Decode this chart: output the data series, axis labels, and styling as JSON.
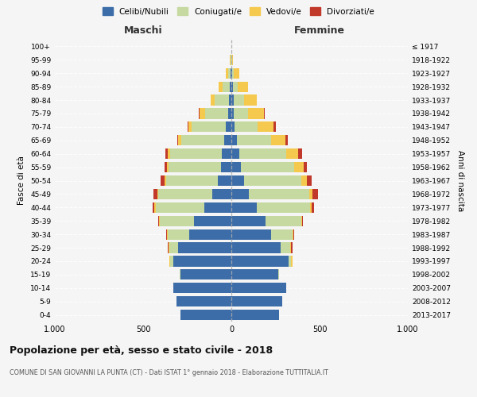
{
  "age_groups": [
    "0-4",
    "5-9",
    "10-14",
    "15-19",
    "20-24",
    "25-29",
    "30-34",
    "35-39",
    "40-44",
    "45-49",
    "50-54",
    "55-59",
    "60-64",
    "65-69",
    "70-74",
    "75-79",
    "80-84",
    "85-89",
    "90-94",
    "95-99",
    "100+"
  ],
  "birth_years": [
    "2013-2017",
    "2008-2012",
    "2003-2007",
    "1998-2002",
    "1993-1997",
    "1988-1992",
    "1983-1987",
    "1978-1982",
    "1973-1977",
    "1968-1972",
    "1963-1967",
    "1958-1962",
    "1953-1957",
    "1948-1952",
    "1943-1947",
    "1938-1942",
    "1933-1937",
    "1928-1932",
    "1923-1927",
    "1918-1922",
    "≤ 1917"
  ],
  "males": {
    "celibi": [
      290,
      310,
      330,
      290,
      330,
      300,
      240,
      210,
      155,
      110,
      75,
      60,
      55,
      40,
      30,
      20,
      15,
      8,
      5,
      2,
      0
    ],
    "coniugati": [
      0,
      0,
      0,
      5,
      15,
      50,
      120,
      195,
      275,
      305,
      295,
      295,
      290,
      245,
      195,
      130,
      80,
      40,
      15,
      3,
      0
    ],
    "vedovi": [
      0,
      0,
      0,
      0,
      5,
      5,
      5,
      5,
      5,
      5,
      10,
      10,
      15,
      15,
      20,
      30,
      20,
      25,
      10,
      2,
      0
    ],
    "divorziati": [
      0,
      0,
      0,
      0,
      0,
      5,
      5,
      5,
      10,
      20,
      20,
      15,
      15,
      5,
      5,
      5,
      0,
      0,
      0,
      0,
      0
    ]
  },
  "females": {
    "nubili": [
      270,
      290,
      310,
      265,
      325,
      280,
      225,
      195,
      145,
      100,
      70,
      55,
      45,
      30,
      20,
      15,
      15,
      10,
      5,
      2,
      0
    ],
    "coniugate": [
      0,
      0,
      0,
      5,
      15,
      55,
      120,
      200,
      300,
      340,
      325,
      300,
      265,
      195,
      130,
      80,
      55,
      25,
      10,
      3,
      0
    ],
    "vedove": [
      0,
      0,
      0,
      0,
      5,
      5,
      5,
      5,
      10,
      20,
      35,
      55,
      70,
      80,
      90,
      90,
      75,
      60,
      30,
      5,
      0
    ],
    "divorziate": [
      0,
      0,
      0,
      0,
      0,
      5,
      5,
      5,
      15,
      30,
      25,
      20,
      20,
      15,
      10,
      5,
      0,
      0,
      0,
      0,
      0
    ]
  },
  "colors": {
    "celibi": "#3d6da8",
    "coniugati": "#c5d9a0",
    "vedovi": "#f5c94e",
    "divorziati": "#c0392b"
  },
  "legend_labels": [
    "Celibi/Nubili",
    "Coniugati/e",
    "Vedovi/e",
    "Divorziati/e"
  ],
  "title": "Popolazione per età, sesso e stato civile - 2018",
  "subtitle": "COMUNE DI SAN GIOVANNI LA PUNTA (CT) - Dati ISTAT 1° gennaio 2018 - Elaborazione TUTTITALIA.IT",
  "xlabel_left": "Maschi",
  "xlabel_right": "Femmine",
  "ylabel_left": "Fasce di età",
  "ylabel_right": "Anni di nascita",
  "xlim": 1000,
  "bg_color": "#f5f5f5"
}
